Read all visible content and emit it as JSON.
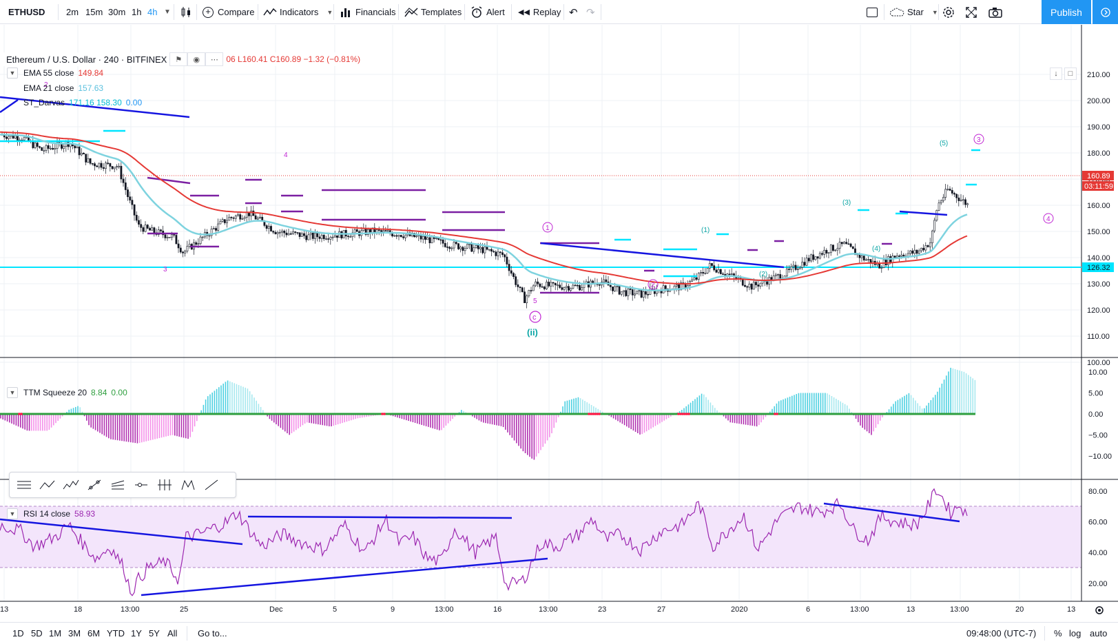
{
  "toolbar": {
    "symbol": "ETHUSD",
    "intervals": [
      "2m",
      "15m",
      "30m",
      "1h",
      "4h"
    ],
    "compare": "Compare",
    "indicators": "Indicators",
    "financials": "Financials",
    "templates": "Templates",
    "alert": "Alert",
    "replay": "Replay",
    "layout_name": "Star",
    "publish": "Publish"
  },
  "legend": {
    "symbol_title": "Ethereum / U.S. Dollar · 240 · BITFINEX",
    "ohlc": "06 L160.41 C160.89 −1.32 (−0.81%)",
    "ema55_label": "EMA 55 close",
    "ema55_value": "149.84",
    "ema21_label": "EMA 21 close",
    "ema21_value": "157.63",
    "darvas_label": "ST_Darvas",
    "darvas_values": "171.16 158.30",
    "darvas_zero": "0.00",
    "ttm_label": "TTM Squeeze 20",
    "ttm_value1": "8.84",
    "ttm_value2": "0.00",
    "rsi_label": "RSI 14 close",
    "rsi_value": "58.93"
  },
  "price_axis": {
    "ticks": [
      "210.00",
      "200.00",
      "190.00",
      "180.00",
      "170.00",
      "160.00",
      "150.00",
      "140.00",
      "130.00",
      "120.00",
      "110.00",
      "100.00"
    ],
    "last_price": "160.89",
    "countdown": "03:11:59",
    "level_price": "126.32"
  },
  "ttm_axis": {
    "ticks": [
      "10.00",
      "5.00",
      "0.00",
      "−5.00",
      "−10.00"
    ]
  },
  "rsi_axis": {
    "ticks": [
      "80.00",
      "60.00",
      "40.00",
      "20.00"
    ]
  },
  "time_axis": {
    "ticks": [
      "13",
      "18",
      "13:00",
      "25",
      "Dec",
      "5",
      "9",
      "13:00",
      "16",
      "13:00",
      "23",
      "27",
      "2020",
      "6",
      "13:00",
      "13",
      "13:00",
      "20",
      "13"
    ]
  },
  "wave_labels": {
    "w2": "2",
    "w4": "4",
    "w3": "3",
    "w5": "5",
    "c": "c",
    "ii": "(ii)",
    "c1": "1",
    "c2": "2",
    "c3": "3",
    "c4": "4",
    "p1": "(1)",
    "p2": "(2)",
    "p3": "(3)",
    "p4": "(4)",
    "p5": "(5)"
  },
  "bottom": {
    "ranges": [
      "1D",
      "5D",
      "1M",
      "3M",
      "6M",
      "YTD",
      "1Y",
      "5Y",
      "All"
    ],
    "goto": "Go to...",
    "clock": "09:48:00 (UTC-7)",
    "percent": "%",
    "log": "log",
    "auto": "auto"
  },
  "colors": {
    "accent": "#2196f3",
    "ema55": "#e53935",
    "ema21": "#7ed3df",
    "darvas": "#00e5ff",
    "trendline": "#1515e0",
    "box": "#7b1fa2",
    "wave_purple": "#c026d3",
    "wave_teal": "#0aa5a5",
    "rsi_line": "#9c27b0"
  }
}
